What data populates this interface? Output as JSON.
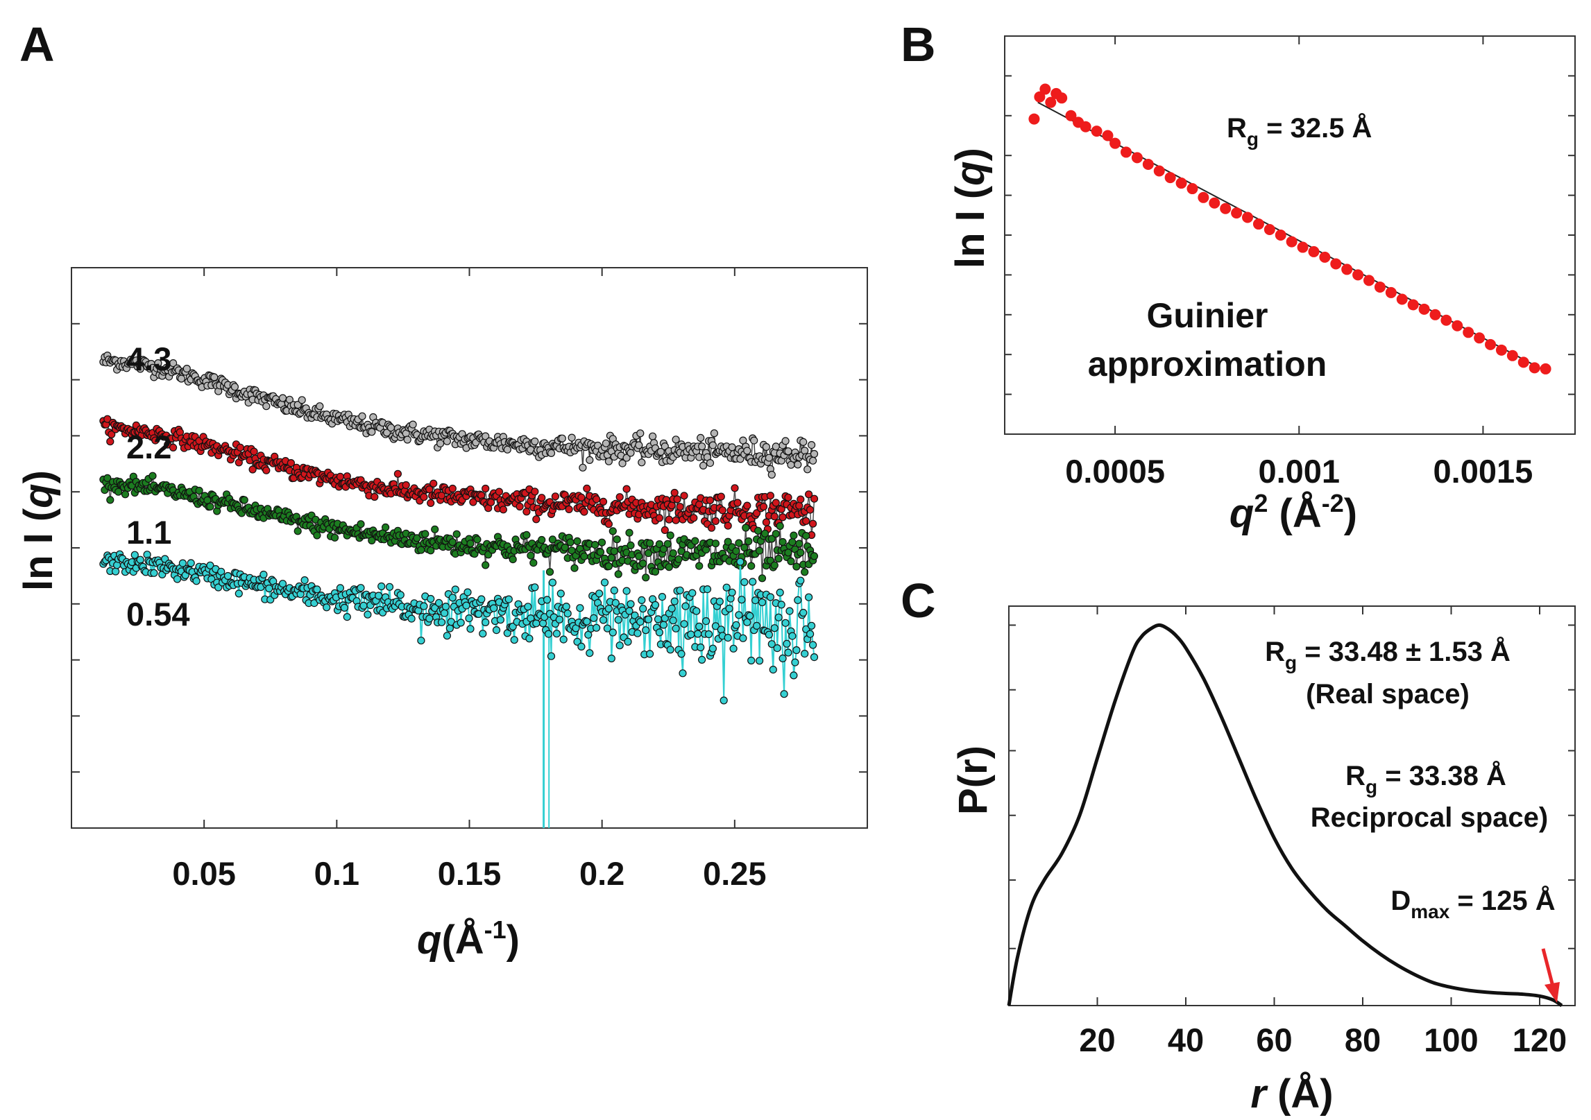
{
  "panels": {
    "A": {
      "letter": "A"
    },
    "B": {
      "letter": "B"
    },
    "C": {
      "letter": "C"
    }
  },
  "chart_data": [
    {
      "panel": "A",
      "type": "scatter",
      "title": "",
      "xlabel_main": "q",
      "xlabel_unit": "(Å",
      "xlabel_exp": "-1",
      "xlabel_close": ")",
      "ylabel_prefix": "ln I (",
      "ylabel_var": "q",
      "ylabel_suffix": ")",
      "xlim": [
        0.0,
        0.3
      ],
      "ylim": [
        0,
        10
      ],
      "xticks": [
        0.05,
        0.1,
        0.15,
        0.2,
        0.25
      ],
      "xtick_labels": [
        "0.05",
        "0.1",
        "0.15",
        "0.2",
        "0.25"
      ],
      "yticks": [
        1,
        2,
        3,
        4,
        5,
        6,
        7,
        8,
        9
      ],
      "series": [
        {
          "name": "4.3",
          "label": "4.3",
          "color": "#b5b5b5",
          "fit_color": "#444444",
          "baseline": 8.8,
          "amplitude": 1.75,
          "noise": 0.05,
          "noise_growth": 0.05
        },
        {
          "name": "2.2",
          "label": "2.2",
          "color": "#d0161c",
          "fit_color": "#555555",
          "baseline": 7.6,
          "amplitude": 1.55,
          "noise": 0.05,
          "noise_growth": 0.08
        },
        {
          "name": "1.1",
          "label": "1.1",
          "color": "#1c7d20",
          "fit_color": "#555555",
          "baseline": 6.6,
          "amplitude": 1.35,
          "noise": 0.05,
          "noise_growth": 0.12
        },
        {
          "name": "0.54",
          "label": "0.54",
          "color": "#35d0d2",
          "fit_color": "#35d0d2",
          "baseline": 5.2,
          "amplitude": 1.1,
          "noise": 0.06,
          "noise_growth": 0.28
        }
      ],
      "q_range": [
        0.012,
        0.28
      ]
    },
    {
      "panel": "B",
      "type": "scatter",
      "title": "Guinier approximation",
      "title_line1": "Guinier",
      "title_line2": "approximation",
      "annotation_main": "R",
      "annotation_sub": "g",
      "annotation_rest": " = 32.5 Å",
      "xlabel_main": "q",
      "xlabel_sup": "2",
      "xlabel_unit": " (Å",
      "xlabel_exp": "-2",
      "xlabel_close": ")",
      "ylabel_prefix": "ln I (",
      "ylabel_var": "q",
      "ylabel_suffix": ")",
      "xlim": [
        0.0002,
        0.00175
      ],
      "ylim": [
        -0.3,
        0.06
      ],
      "xticks": [
        0.0005,
        0.001,
        0.0015
      ],
      "xtick_labels": [
        "0.0005",
        "0.001",
        "0.0015"
      ],
      "fit": {
        "x0": 0.00029,
        "y0": 0.0,
        "x1": 0.00167,
        "y1": -0.243
      },
      "color": "#ee1c1c",
      "x_points": [
        0.00028,
        0.000295,
        0.00031,
        0.000325,
        0.00034,
        0.000355,
        0.00038,
        0.0004,
        0.00042,
        0.00045,
        0.00048,
        0.0005,
        0.00053,
        0.00056,
        0.00059,
        0.00062,
        0.00065,
        0.00068,
        0.00071,
        0.00074,
        0.00077,
        0.0008,
        0.00083,
        0.00086,
        0.00089,
        0.00092,
        0.00095,
        0.00098,
        0.00101,
        0.00104,
        0.00107,
        0.0011,
        0.00113,
        0.00116,
        0.00119,
        0.00122,
        0.00125,
        0.00128,
        0.00131,
        0.00134,
        0.00137,
        0.0014,
        0.00143,
        0.00146,
        0.00149,
        0.00152,
        0.00155,
        0.00158,
        0.00161,
        0.00164,
        0.00167
      ],
      "y_points": [
        -0.015,
        0.005,
        0.012,
        0.0,
        0.008,
        0.004,
        -0.012,
        -0.018,
        -0.022,
        -0.026,
        -0.03,
        -0.037,
        -0.045,
        -0.05,
        -0.056,
        -0.062,
        -0.068,
        -0.073,
        -0.078,
        -0.086,
        -0.091,
        -0.096,
        -0.1,
        -0.104,
        -0.11,
        -0.115,
        -0.12,
        -0.126,
        -0.131,
        -0.135,
        -0.14,
        -0.146,
        -0.151,
        -0.156,
        -0.161,
        -0.167,
        -0.172,
        -0.178,
        -0.183,
        -0.187,
        -0.192,
        -0.197,
        -0.202,
        -0.208,
        -0.213,
        -0.219,
        -0.224,
        -0.229,
        -0.235,
        -0.24,
        -0.241
      ]
    },
    {
      "panel": "C",
      "type": "line",
      "title": "",
      "xlabel_main": "r",
      "xlabel_unit": " (Å)",
      "ylabel": "P(r)",
      "xlim": [
        0,
        128
      ],
      "ylim": [
        0,
        1.05
      ],
      "xticks": [
        20,
        40,
        60,
        80,
        100,
        120
      ],
      "xtick_labels": [
        "20",
        "40",
        "60",
        "80",
        "100",
        "120"
      ],
      "yticks": [
        0.15,
        0.33,
        0.5,
        0.67,
        0.83,
        1.0
      ],
      "x": [
        0,
        2,
        5,
        8,
        12,
        16,
        20,
        24,
        28,
        30,
        32,
        34,
        36,
        38,
        40,
        44,
        48,
        52,
        56,
        60,
        64,
        68,
        72,
        76,
        80,
        84,
        88,
        92,
        96,
        100,
        104,
        108,
        112,
        116,
        120,
        123,
        125
      ],
      "y": [
        0.0,
        0.13,
        0.26,
        0.33,
        0.4,
        0.5,
        0.65,
        0.8,
        0.93,
        0.97,
        0.99,
        1.0,
        0.99,
        0.97,
        0.94,
        0.86,
        0.76,
        0.65,
        0.54,
        0.44,
        0.36,
        0.3,
        0.25,
        0.21,
        0.17,
        0.135,
        0.105,
        0.08,
        0.06,
        0.048,
        0.04,
        0.035,
        0.032,
        0.03,
        0.025,
        0.015,
        0.0
      ],
      "annotations": [
        {
          "main": "R",
          "sub": "g",
          "rest": " = 33.48 ± 1.53 Å",
          "note": "(Real space)"
        },
        {
          "main": "R",
          "sub": "g",
          "rest": " = 33.38 Å",
          "note": "Reciprocal space)"
        },
        {
          "main": "D",
          "sub": "max",
          "rest": " = 125 Å"
        }
      ],
      "arrow_color": "#e8262a"
    }
  ]
}
